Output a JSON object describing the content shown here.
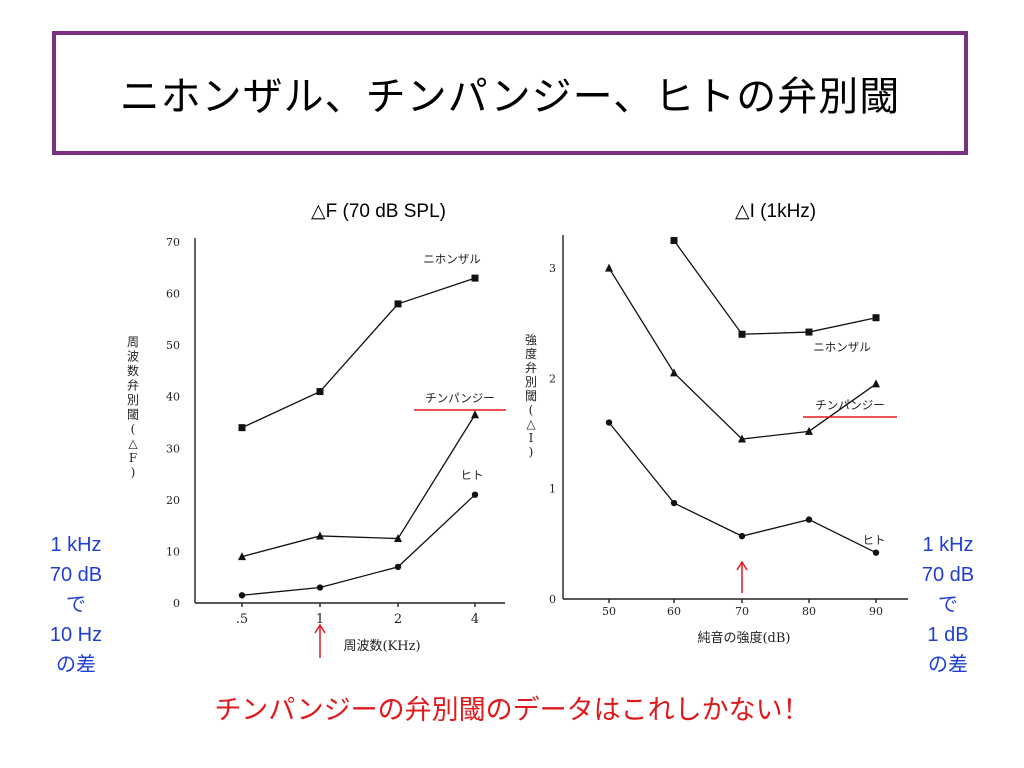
{
  "slide": {
    "title": "ニホンザル、チンパンジー、ヒトの弁別閾",
    "footer": "チンパンジーの弁別閾のデータはこれしかない！",
    "left_note": [
      "1 kHz",
      "70 dB",
      "で",
      "10 Hz",
      "の差"
    ],
    "right_note": [
      "1 kHz",
      "70 dB",
      "で",
      "1 dB",
      "の差"
    ],
    "colors": {
      "title_border": "#7a2f82",
      "note": "#1f3fd6",
      "highlight": "#e0191d"
    }
  },
  "chart_data": [
    {
      "type": "line",
      "title": "△F  (70 dB SPL)",
      "xlabel": "周波数(KHz)",
      "ylabel": "周波数弁別閾(△F)",
      "categories": [
        ".5",
        "1",
        "2",
        "4"
      ],
      "yticks": [
        "0",
        "10",
        "20",
        "30",
        "40",
        "50",
        "60",
        "70"
      ],
      "ylim": [
        0,
        70
      ],
      "grid": false,
      "marker_arrow_at": "1",
      "series": [
        {
          "name": "ニホンザル",
          "marker": "square",
          "values": [
            34,
            41,
            58,
            63
          ]
        },
        {
          "name": "チンパンジー",
          "marker": "triangle",
          "values": [
            9,
            13,
            12.5,
            36.5
          ],
          "underline_color": "#e0191d"
        },
        {
          "name": "ヒト",
          "marker": "circle",
          "values": [
            1.5,
            3,
            7,
            21
          ]
        }
      ]
    },
    {
      "type": "line",
      "title": "△I   (1kHz)",
      "xlabel": "純音の強度(dB)",
      "ylabel": "強度弁別閾(△I)",
      "categories": [
        "50",
        "60",
        "70",
        "80",
        "90"
      ],
      "yticks": [
        "0",
        "1",
        "2",
        "3"
      ],
      "ylim": [
        0,
        3.3
      ],
      "grid": false,
      "marker_arrow_at": "70",
      "series": [
        {
          "name": "ニホンザル",
          "marker": "square",
          "values": [
            null,
            3.25,
            2.4,
            2.42,
            2.55
          ]
        },
        {
          "name": "チンパンジー",
          "marker": "triangle",
          "values": [
            3.0,
            2.05,
            1.45,
            1.52,
            1.95
          ],
          "underline_color": "#e0191d"
        },
        {
          "name": "ヒト",
          "marker": "circle",
          "values": [
            1.6,
            0.87,
            0.57,
            0.72,
            0.42
          ]
        }
      ]
    }
  ]
}
